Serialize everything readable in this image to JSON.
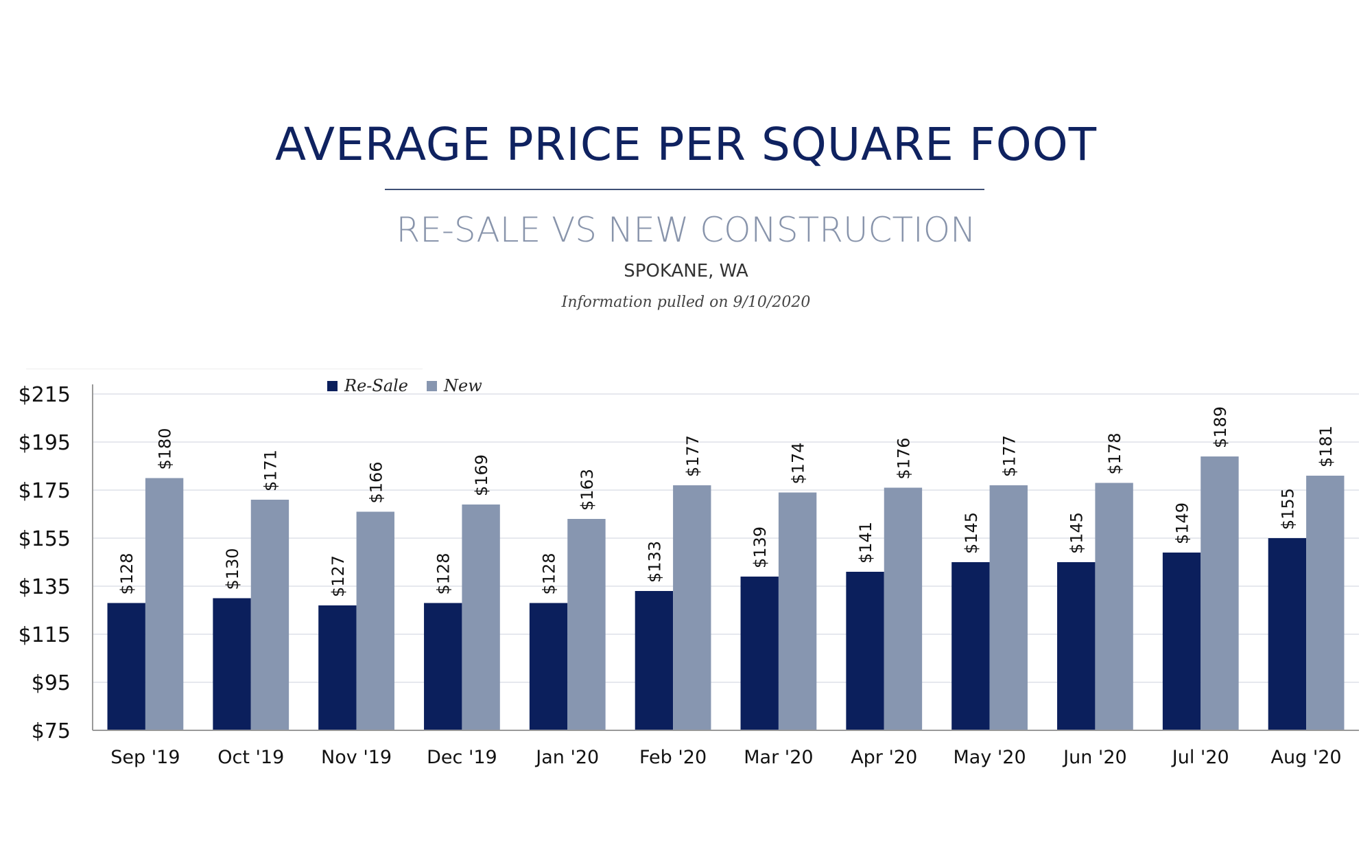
{
  "header": {
    "title": "AVERAGE PRICE PER SQUARE FOOT",
    "subtitle": "RE-SALE VS NEW CONSTRUCTION",
    "location": "SPOKANE, WA",
    "note": "Information pulled on 9/10/2020"
  },
  "chart_data": {
    "type": "bar",
    "title": "",
    "xlabel": "",
    "ylabel": "",
    "ylim": [
      75,
      215
    ],
    "yticks": [
      75,
      95,
      115,
      135,
      155,
      175,
      195,
      215
    ],
    "ytick_labels": [
      "$75",
      "$95",
      "$115",
      "$135",
      "$155",
      "$175",
      "$195",
      "$215"
    ],
    "grid": true,
    "legend": "top-left",
    "categories": [
      "Sep '19",
      "Oct '19",
      "Nov '19",
      "Dec '19",
      "Jan '20",
      "Feb '20",
      "Mar '20",
      "Apr '20",
      "May '20",
      "Jun '20",
      "Jul '20",
      "Aug '20"
    ],
    "series": [
      {
        "name": "Re-Sale",
        "color": "#0b1f5c",
        "values": [
          128,
          130,
          127,
          128,
          128,
          133,
          139,
          141,
          145,
          145,
          149,
          155
        ],
        "labels": [
          "$128",
          "$130",
          "$127",
          "$128",
          "$128",
          "$133",
          "$139",
          "$141",
          "$145",
          "$145",
          "$149",
          "$155"
        ]
      },
      {
        "name": "New",
        "color": "#8796b0",
        "values": [
          180,
          171,
          166,
          169,
          163,
          177,
          174,
          176,
          177,
          178,
          189,
          181
        ],
        "labels": [
          "$180",
          "$171",
          "$166",
          "$169",
          "$163",
          "$177",
          "$174",
          "$176",
          "$177",
          "$178",
          "$189",
          "$181"
        ]
      }
    ]
  }
}
